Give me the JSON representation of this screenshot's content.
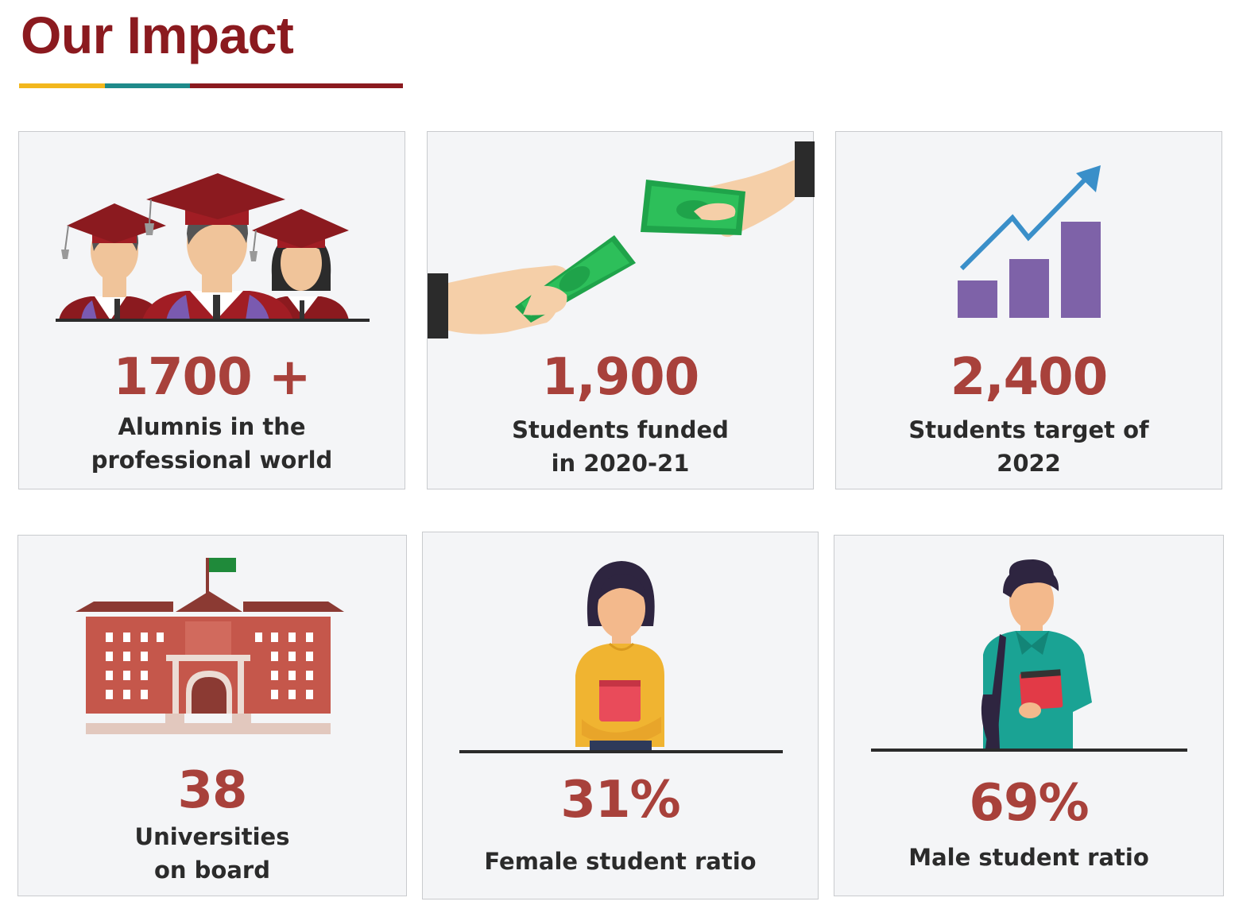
{
  "header": {
    "title": "Our Impact",
    "underline_colors": [
      "#f2b71d",
      "#1f8a8a",
      "#8b1a1f"
    ]
  },
  "colors": {
    "title": "#8b1a1f",
    "stat": "#a8413b",
    "label": "#2b2b2b",
    "card_bg": "#f4f5f7"
  },
  "cards": [
    {
      "icon": "graduates-icon",
      "value": "1700 +",
      "label": "Alumnis in the\nprofessional world"
    },
    {
      "icon": "money-exchange-icon",
      "value": "1,900",
      "label": "Students funded\nin 2020-21"
    },
    {
      "icon": "growth-chart-icon",
      "value": "2,400",
      "label": "Students target of\n2022"
    },
    {
      "icon": "university-building-icon",
      "value": "38",
      "label": "Universities\non board"
    },
    {
      "icon": "female-student-icon",
      "value": "31%",
      "label": "Female student ratio"
    },
    {
      "icon": "male-student-icon",
      "value": "69%",
      "label": "Male student ratio"
    }
  ]
}
